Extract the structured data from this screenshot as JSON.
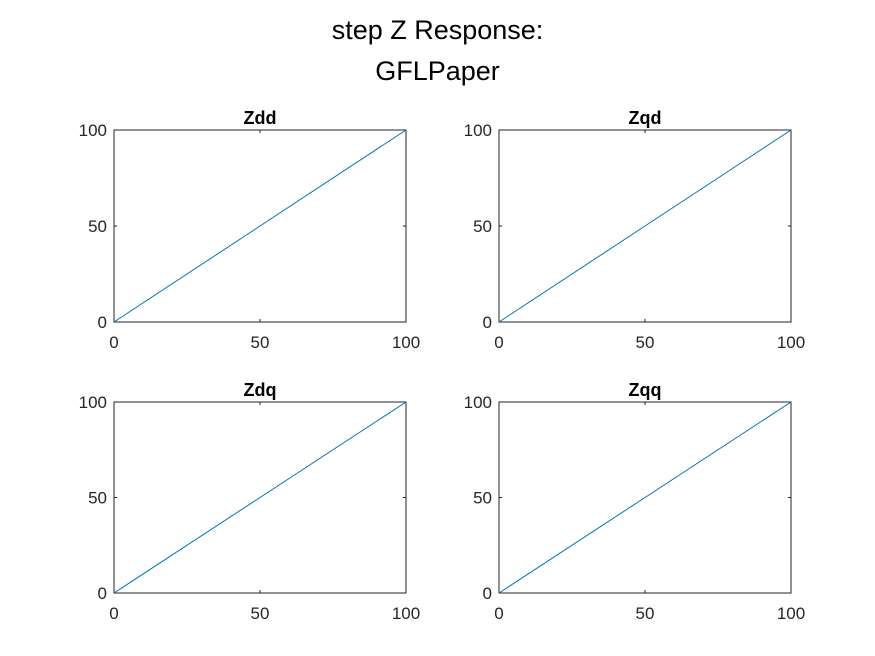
{
  "figure": {
    "title_lines": [
      "step Z Response:",
      "GFLPaper"
    ]
  },
  "colors": {
    "line": "#0072BD",
    "axes": "#262626",
    "title": "#000000"
  },
  "chart_data": [
    {
      "type": "line",
      "title": "Zdd",
      "x": [
        0,
        100
      ],
      "series": [
        {
          "values": [
            0,
            100
          ]
        }
      ],
      "xlim": [
        0,
        100
      ],
      "ylim": [
        0,
        100
      ],
      "xticks": [
        0,
        50,
        100
      ],
      "yticks": [
        0,
        50,
        100
      ],
      "xtick_labels": [
        "0",
        "50",
        "100"
      ],
      "ytick_labels": [
        "0",
        "50",
        "100"
      ],
      "grid": false
    },
    {
      "type": "line",
      "title": "Zqd",
      "x": [
        0,
        100
      ],
      "series": [
        {
          "values": [
            0,
            100
          ]
        }
      ],
      "xlim": [
        0,
        100
      ],
      "ylim": [
        0,
        100
      ],
      "xticks": [
        0,
        50,
        100
      ],
      "yticks": [
        0,
        50,
        100
      ],
      "xtick_labels": [
        "0",
        "50",
        "100"
      ],
      "ytick_labels": [
        "0",
        "50",
        "100"
      ],
      "grid": false
    },
    {
      "type": "line",
      "title": "Zdq",
      "x": [
        0,
        100
      ],
      "series": [
        {
          "values": [
            0,
            100
          ]
        }
      ],
      "xlim": [
        0,
        100
      ],
      "ylim": [
        0,
        100
      ],
      "xticks": [
        0,
        50,
        100
      ],
      "yticks": [
        0,
        50,
        100
      ],
      "xtick_labels": [
        "0",
        "50",
        "100"
      ],
      "ytick_labels": [
        "0",
        "50",
        "100"
      ],
      "grid": false
    },
    {
      "type": "line",
      "title": "Zqq",
      "x": [
        0,
        100
      ],
      "series": [
        {
          "values": [
            0,
            100
          ]
        }
      ],
      "xlim": [
        0,
        100
      ],
      "ylim": [
        0,
        100
      ],
      "xticks": [
        0,
        50,
        100
      ],
      "yticks": [
        0,
        50,
        100
      ],
      "xtick_labels": [
        "0",
        "50",
        "100"
      ],
      "ytick_labels": [
        "0",
        "50",
        "100"
      ],
      "grid": false
    }
  ]
}
